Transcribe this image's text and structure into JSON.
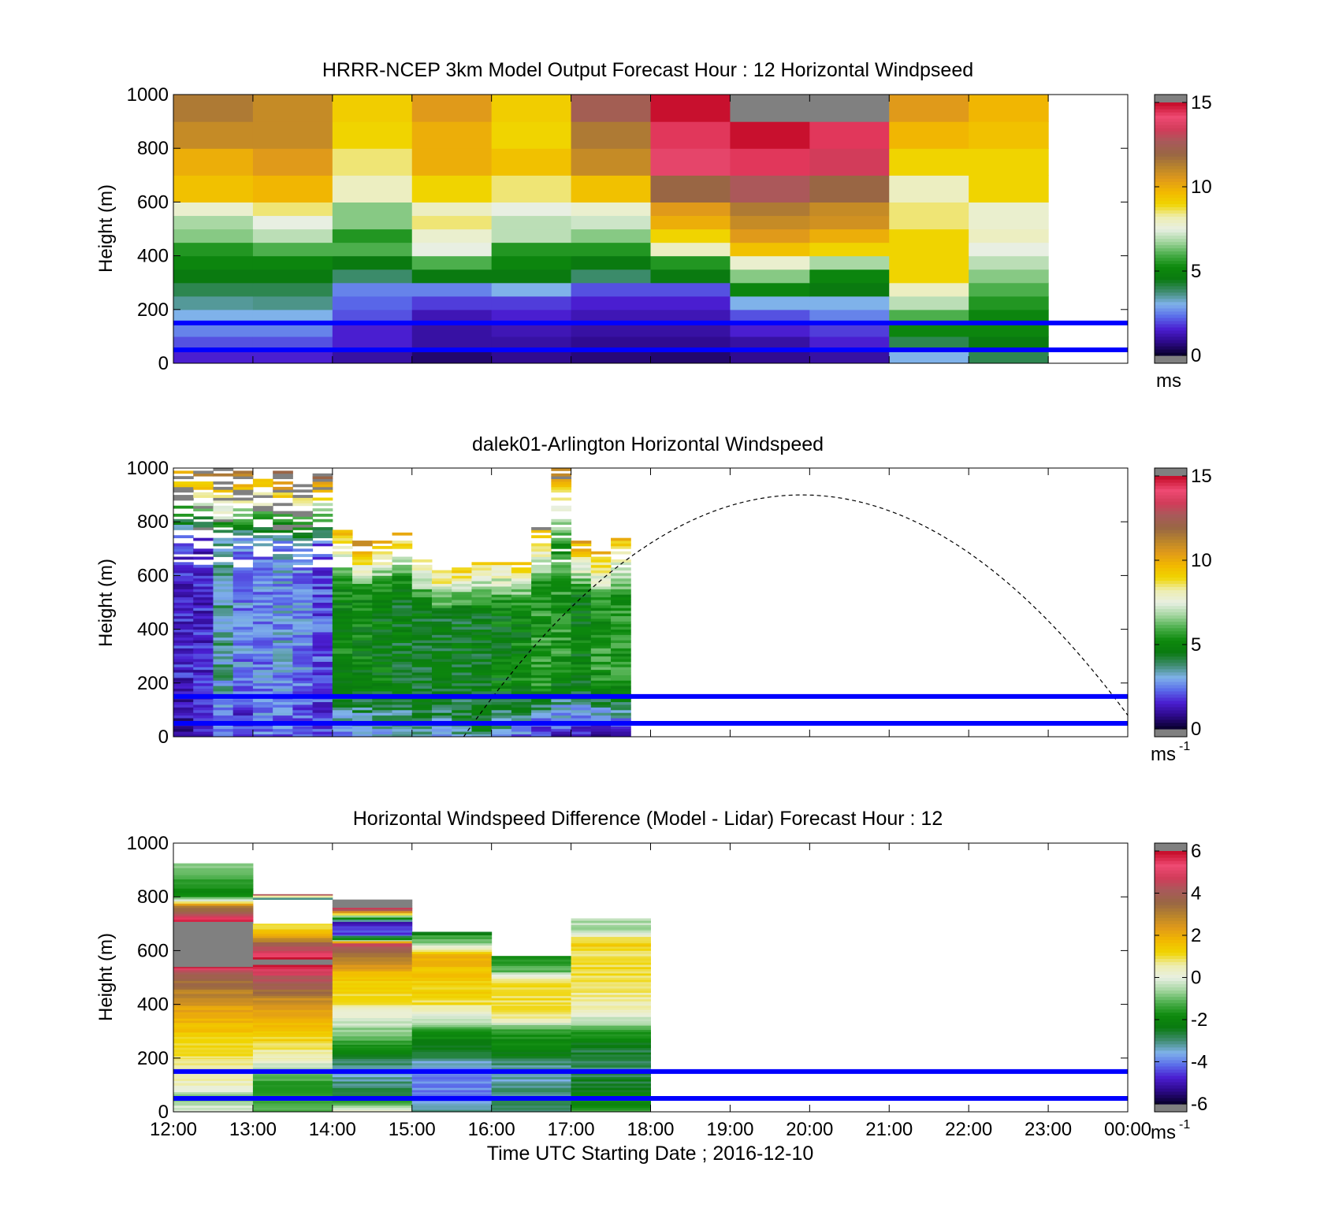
{
  "colors": {
    "wind_ramp": [
      "#808080",
      "#0b0033",
      "#2e0a8c",
      "#4a1ed0",
      "#5a6bea",
      "#7fb2ea",
      "#3f8c70",
      "#0a7a10",
      "#0d8a0d",
      "#4caf4c",
      "#a4d6a0",
      "#e8efe2",
      "#eeeeb0",
      "#f0d400",
      "#f2b800",
      "#e09a1a",
      "#b8842c",
      "#996644",
      "#a85a5a",
      "#d23c5a",
      "#ee4a72",
      "#c8102e",
      "#808080"
    ],
    "overlay_line": "#0000ff",
    "axis": "#000000"
  },
  "chart_data": [
    {
      "type": "heatmap",
      "title": "HRRR-NCEP 3km Model Output   Forecast Hour : 12 Horizontal Windpseed",
      "ylabel": "Height (m)",
      "xlabel": "",
      "x_ticks": [],
      "y_ticks": [
        "0",
        "200",
        "400",
        "600",
        "800",
        "1000"
      ],
      "ylim": [
        0,
        1000
      ],
      "xlim_hours": [
        12,
        24
      ],
      "colorbar": {
        "ticks": [
          "0",
          "5",
          "10",
          "15"
        ],
        "range": [
          0,
          15
        ],
        "unit": "ms",
        "unit_sup": ""
      },
      "horizontal_lines_m": [
        50,
        150
      ],
      "x_start_hours": [
        12,
        13,
        14,
        15,
        16,
        17,
        18,
        19,
        20,
        21,
        22
      ],
      "x_width_hours": 1,
      "y_levels_m": [
        0,
        50,
        100,
        150,
        200,
        250,
        300,
        350,
        400,
        450,
        500,
        550,
        600,
        700,
        800,
        900,
        1000
      ],
      "values": [
        [
          1.5,
          1.5,
          1.0,
          0.5,
          0.8,
          0.6,
          0.5,
          0.8,
          1.0,
          3.0,
          4.0
        ],
        [
          2.0,
          2.0,
          1.5,
          1.0,
          1.0,
          0.8,
          0.8,
          1.0,
          1.5,
          4.0,
          4.5
        ],
        [
          2.5,
          2.5,
          1.5,
          1.0,
          1.2,
          1.0,
          1.0,
          1.5,
          1.8,
          5.0,
          5.0
        ],
        [
          3.0,
          3.0,
          2.0,
          1.2,
          1.5,
          1.2,
          1.2,
          2.0,
          2.5,
          6.0,
          5.0
        ],
        [
          3.5,
          3.6,
          2.2,
          1.8,
          1.8,
          1.5,
          1.5,
          3.0,
          3.0,
          7.0,
          5.5
        ],
        [
          4.0,
          4.0,
          2.5,
          2.5,
          3.0,
          2.0,
          2.0,
          5.0,
          4.5,
          8.0,
          6.0
        ],
        [
          4.5,
          4.5,
          3.8,
          4.5,
          4.5,
          3.8,
          4.5,
          6.5,
          5.0,
          9.0,
          6.5
        ],
        [
          5.0,
          5.0,
          4.5,
          6.0,
          5.0,
          4.5,
          5.5,
          7.8,
          6.8,
          9.0,
          7.0
        ],
        [
          5.5,
          6.0,
          6.0,
          7.5,
          5.5,
          5.5,
          8.0,
          9.5,
          9.0,
          9.0,
          7.5
        ],
        [
          6.5,
          7.0,
          5.5,
          7.8,
          7.0,
          6.5,
          9.0,
          10.5,
          10.0,
          9.0,
          8.0
        ],
        [
          6.8,
          7.5,
          6.5,
          8.5,
          7.0,
          7.2,
          10.0,
          11.0,
          10.8,
          8.5,
          7.8
        ],
        [
          7.8,
          8.5,
          6.5,
          8.0,
          7.5,
          7.8,
          10.5,
          11.5,
          11.0,
          8.5,
          7.8
        ],
        [
          9.5,
          9.8,
          8.0,
          9.0,
          8.5,
          9.5,
          12.0,
          12.8,
          12.0,
          8.0,
          9.0
        ],
        [
          10.0,
          10.5,
          8.5,
          10.0,
          9.5,
          11.0,
          14.0,
          14.5,
          13.5,
          9.0,
          9.0
        ],
        [
          11.0,
          11.0,
          9.0,
          10.0,
          9.0,
          11.5,
          14.5,
          15.5,
          14.5,
          9.8,
          9.5
        ],
        [
          11.5,
          11.0,
          9.2,
          10.5,
          9.2,
          12.5,
          15.5,
          16.0,
          16.0,
          10.5,
          9.8
        ]
      ]
    },
    {
      "type": "heatmap",
      "title": "dalek01-Arlington  Horizontal Windspeed",
      "ylabel": "Height (m)",
      "xlabel": "",
      "x_ticks": [],
      "y_ticks": [
        "0",
        "200",
        "400",
        "600",
        "800",
        "1000"
      ],
      "ylim": [
        0,
        1000
      ],
      "xlim_hours": [
        12,
        24
      ],
      "colorbar": {
        "ticks": [
          "0",
          "5",
          "10",
          "15"
        ],
        "range": [
          0,
          15
        ],
        "unit": "ms",
        "unit_sup": "-1"
      },
      "horizontal_lines_m": [
        50,
        150
      ],
      "x_start_hours": [
        12.0,
        12.25,
        12.5,
        12.75,
        13.0,
        13.25,
        13.5,
        13.75,
        14.0,
        14.25,
        14.5,
        14.75,
        15.0,
        15.25,
        15.5,
        15.75,
        16.0,
        16.25,
        16.5,
        16.75,
        17.0,
        17.25,
        17.5
      ],
      "x_width_hours": 0.25,
      "top_height_m": [
        990,
        1000,
        1000,
        1000,
        980,
        1000,
        960,
        980,
        780,
        730,
        730,
        760,
        670,
        620,
        630,
        650,
        650,
        660,
        790,
        1000,
        730,
        700,
        740
      ],
      "core_speed_ms": [
        1.5,
        1.5,
        3.5,
        2.5,
        2.5,
        2.8,
        2.5,
        2.0,
        5.0,
        5.0,
        4.8,
        4.5,
        4.5,
        4.5,
        4.5,
        4.5,
        4.8,
        5.0,
        5.5,
        5.5,
        4.8,
        5.5,
        5.5
      ],
      "surface_speed_ms": [
        1.0,
        1.2,
        2.5,
        1.5,
        2.5,
        2.2,
        2.0,
        1.8,
        2.5,
        2.5,
        3.0,
        3.0,
        3.5,
        3.0,
        3.5,
        4.0,
        3.0,
        2.5,
        1.5,
        1.5,
        1.2,
        1.0,
        1.5
      ],
      "top_speed_ms": [
        11.0,
        12.0,
        13.0,
        12.5,
        11.0,
        13.0,
        11.0,
        12.0,
        10.5,
        11.0,
        10.0,
        10.0,
        9.8,
        9.5,
        9.5,
        9.0,
        9.0,
        9.5,
        10.5,
        11.0,
        10.5,
        10.5,
        10.0
      ],
      "dashed_curve": {
        "peak_hour": 19.9,
        "peak_m": 900,
        "x_range_hours": [
          15.65,
          24.0
        ],
        "end_m": 80
      }
    },
    {
      "type": "heatmap",
      "title": "Horizontal Windspeed Difference (Model - Lidar) Forecast Hour : 12",
      "ylabel": "Height (m)",
      "xlabel": "Time UTC  Starting Date ; 2016-12-10",
      "x_ticks": [
        "12:00",
        "13:00",
        "14:00",
        "15:00",
        "16:00",
        "17:00",
        "18:00",
        "19:00",
        "20:00",
        "21:00",
        "22:00",
        "23:00",
        "00:00"
      ],
      "y_ticks": [
        "0",
        "200",
        "400",
        "600",
        "800",
        "1000"
      ],
      "ylim": [
        0,
        1000
      ],
      "xlim_hours": [
        12,
        24
      ],
      "colorbar": {
        "ticks": [
          "-6",
          "-4",
          "-2",
          "0",
          "2",
          "4",
          "6"
        ],
        "range": [
          -6,
          6
        ],
        "unit": "ms",
        "unit_sup": "-1"
      },
      "horizontal_lines_m": [
        50,
        150
      ],
      "x_start_hours": [
        12,
        13,
        14,
        15,
        16,
        17
      ],
      "x_width_hours": 1,
      "profiles": [
        [
          [
            0,
            0.0
          ],
          [
            50,
            -1.0
          ],
          [
            100,
            0.5
          ],
          [
            150,
            0.3
          ],
          [
            200,
            1.0
          ],
          [
            300,
            1.5
          ],
          [
            400,
            2.5
          ],
          [
            480,
            3.5
          ],
          [
            520,
            4.5
          ],
          [
            540,
            6.5
          ],
          [
            700,
            6.5
          ],
          [
            730,
            4.5
          ],
          [
            760,
            3.0
          ],
          [
            800,
            -2.0
          ],
          [
            850,
            -1.5
          ],
          [
            900,
            -1.0
          ],
          [
            925,
            -1.0
          ]
        ],
        [
          [
            0,
            -1.0
          ],
          [
            100,
            -1.5
          ],
          [
            150,
            -0.5
          ],
          [
            200,
            0.5
          ],
          [
            300,
            1.5
          ],
          [
            400,
            2.5
          ],
          [
            470,
            4.0
          ],
          [
            500,
            4.5
          ],
          [
            560,
            6.5
          ],
          [
            680,
            1.0
          ],
          [
            700,
            null
          ],
          [
            790,
            -3.0
          ],
          [
            810,
            6.5
          ]
        ],
        [
          [
            0,
            0.5
          ],
          [
            50,
            -2.5
          ],
          [
            150,
            -3.5
          ],
          [
            250,
            -1.5
          ],
          [
            350,
            0.0
          ],
          [
            400,
            1.0
          ],
          [
            500,
            1.5
          ],
          [
            560,
            3.0
          ],
          [
            620,
            4.5
          ],
          [
            640,
            -2.0
          ],
          [
            660,
            -4.5
          ],
          [
            700,
            -5.0
          ],
          [
            760,
            6.5
          ],
          [
            790,
            6.5
          ]
        ],
        [
          [
            0,
            -3.0
          ],
          [
            50,
            -4.0
          ],
          [
            150,
            -4.0
          ],
          [
            200,
            -3.0
          ],
          [
            300,
            -1.5
          ],
          [
            350,
            0.0
          ],
          [
            400,
            1.0
          ],
          [
            500,
            1.5
          ],
          [
            580,
            2.0
          ],
          [
            620,
            -0.5
          ],
          [
            650,
            -1.5
          ],
          [
            670,
            -3.0
          ]
        ],
        [
          [
            0,
            -3.0
          ],
          [
            50,
            -3.0
          ],
          [
            150,
            -3.5
          ],
          [
            200,
            -2.5
          ],
          [
            300,
            -1.5
          ],
          [
            340,
            0.5
          ],
          [
            400,
            1.0
          ],
          [
            480,
            1.0
          ],
          [
            520,
            -1.0
          ],
          [
            560,
            -1.5
          ],
          [
            580,
            -2.0
          ]
        ],
        [
          [
            0,
            -1.5
          ],
          [
            50,
            -2.0
          ],
          [
            150,
            -3.0
          ],
          [
            250,
            -2.5
          ],
          [
            330,
            -0.5
          ],
          [
            380,
            0.5
          ],
          [
            500,
            1.0
          ],
          [
            600,
            1.0
          ],
          [
            620,
            1.5
          ],
          [
            680,
            -0.5
          ],
          [
            720,
            -0.5
          ]
        ]
      ]
    }
  ]
}
